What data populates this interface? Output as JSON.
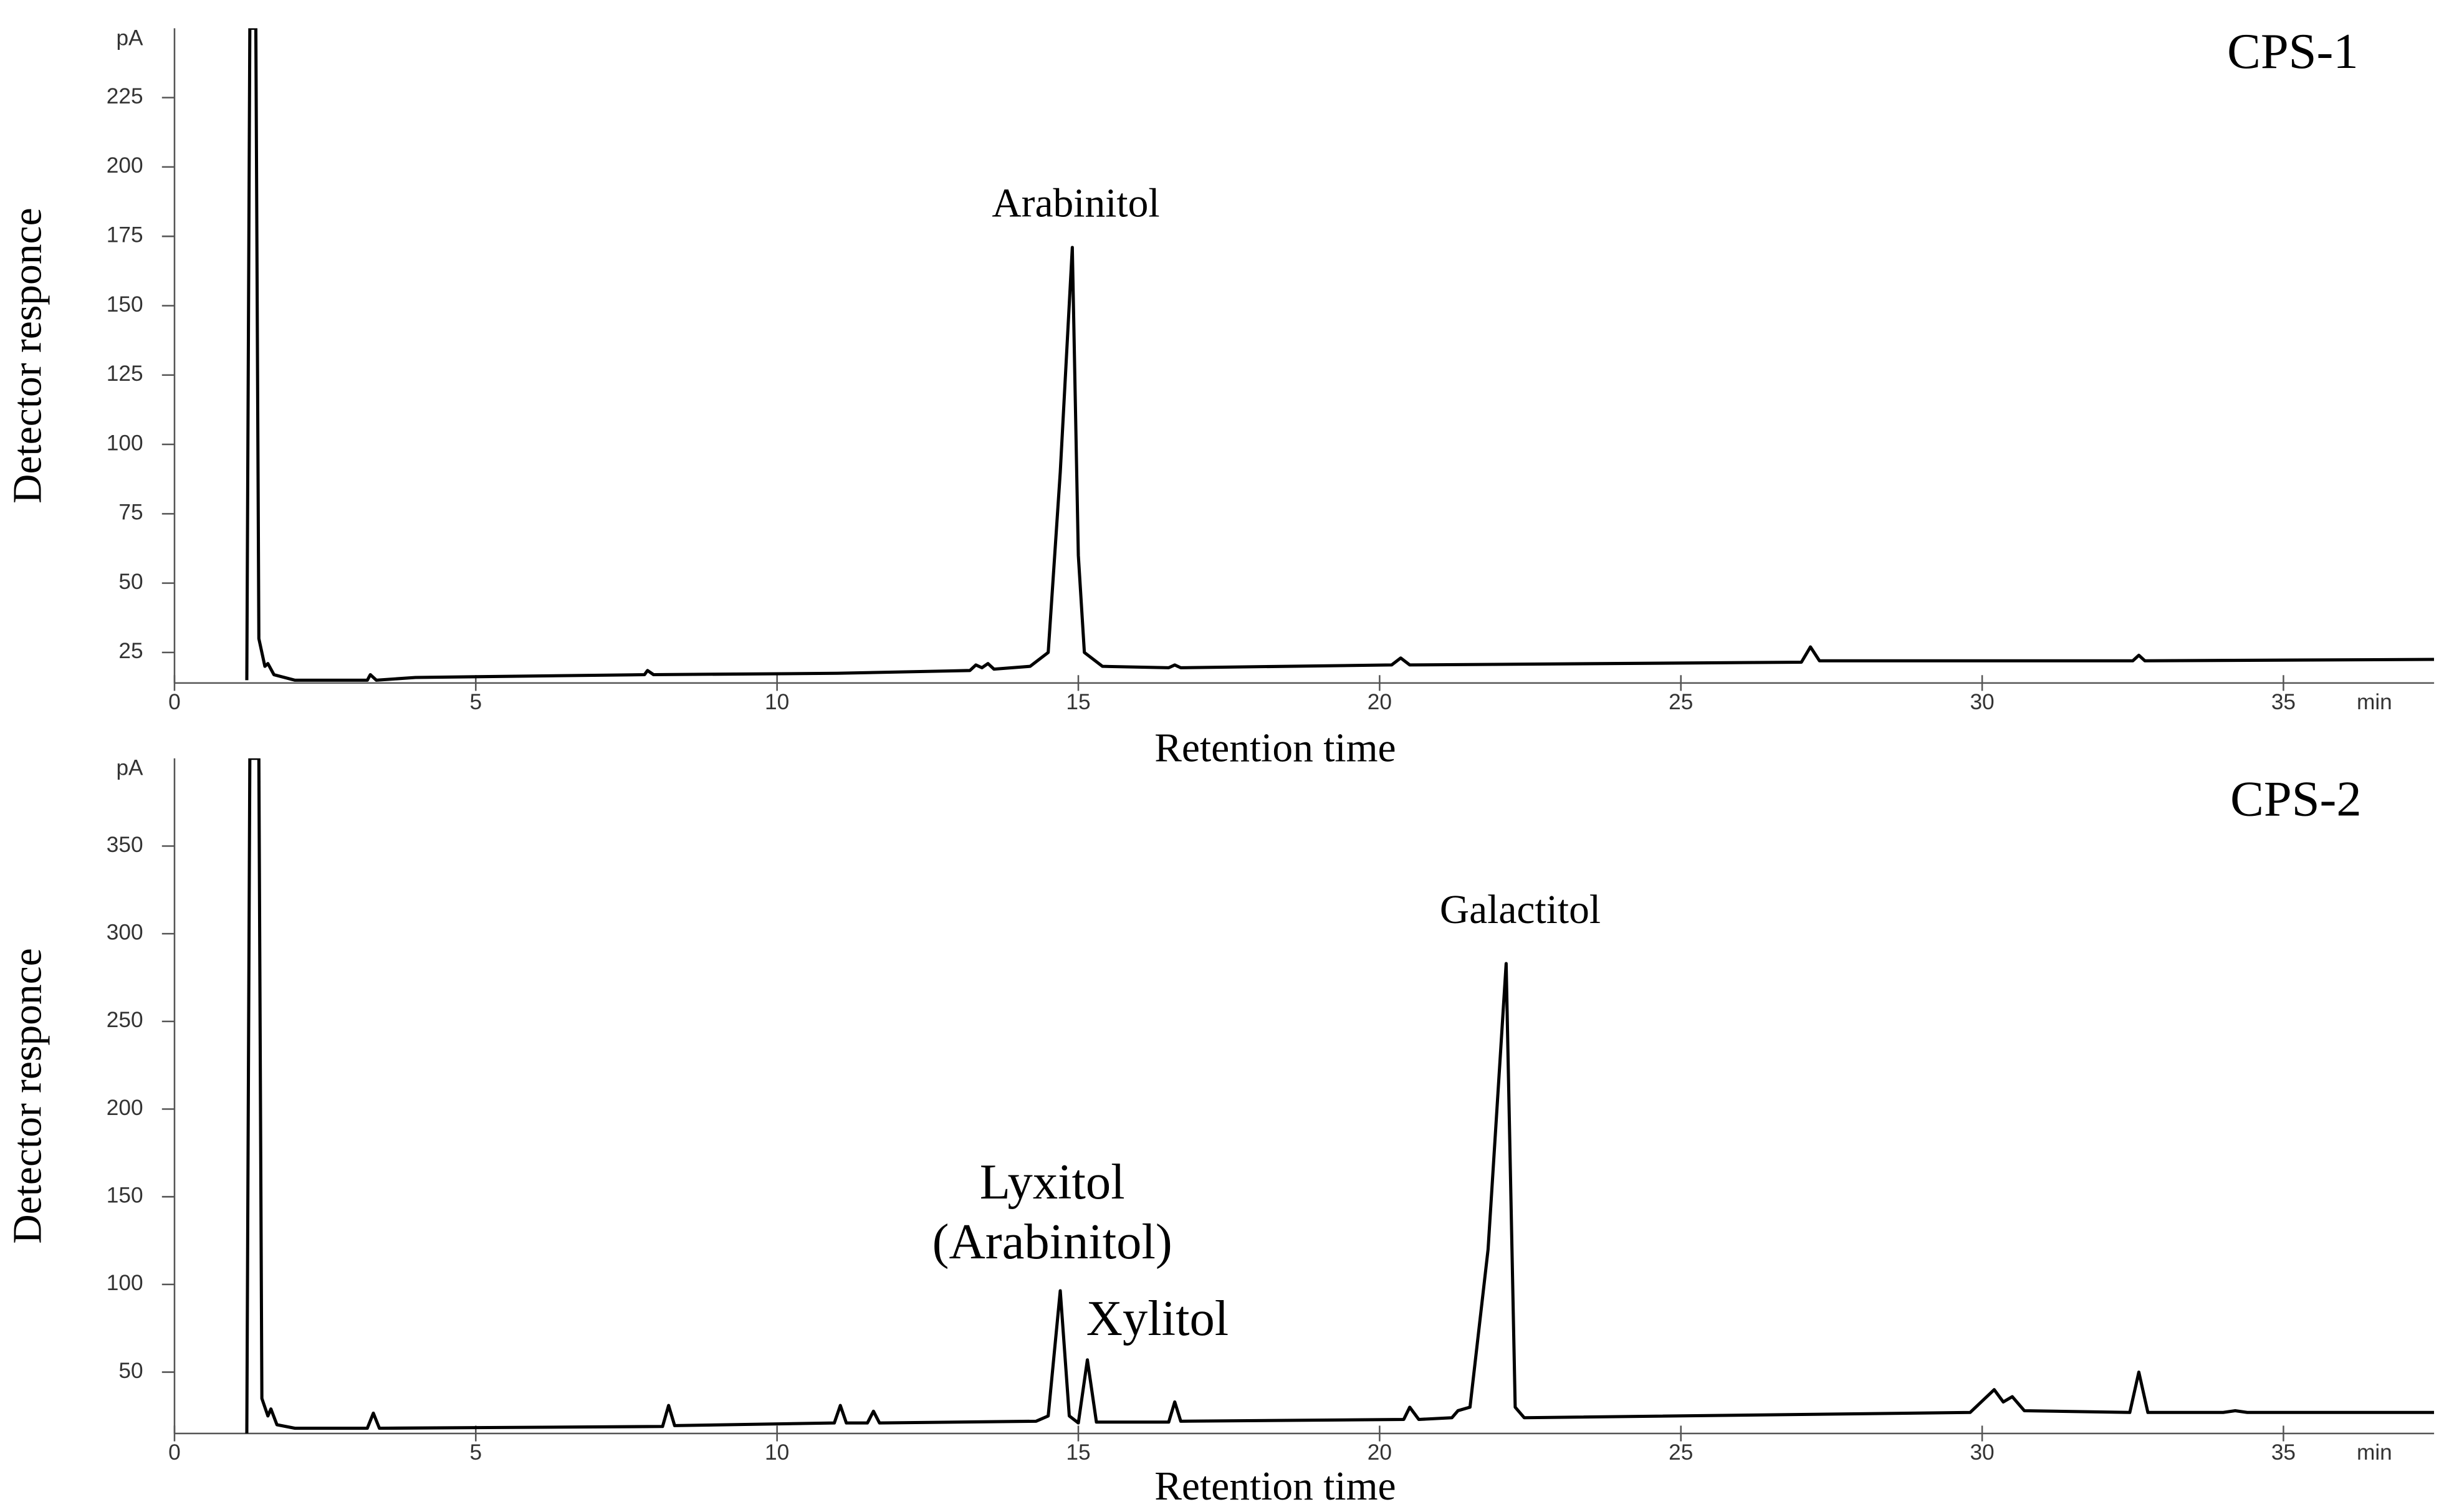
{
  "chart_data": [
    {
      "type": "line",
      "label": "CPS-1",
      "ylabel": "Detector responce",
      "xlabel": "Retention time",
      "x_unit": "min",
      "y_unit": "pA",
      "annotations": [
        "Arabinitol"
      ],
      "color": "#000000",
      "xlim": [
        0,
        37.5
      ],
      "xticks": [
        0,
        5,
        10,
        15,
        20,
        25,
        30,
        35
      ],
      "ylim": [
        14,
        250
      ],
      "yticks": [
        25,
        50,
        75,
        100,
        125,
        150,
        175,
        200,
        225
      ],
      "x": [
        1.2,
        1.25,
        1.35,
        1.4,
        1.5,
        1.55,
        1.65,
        2.0,
        3.2,
        3.25,
        3.35,
        4,
        7.8,
        7.85,
        7.95,
        11,
        13.2,
        13.3,
        13.4,
        13.5,
        13.6,
        14.2,
        14.5,
        14.7,
        14.9,
        15.0,
        15.1,
        15.4,
        16.5,
        16.6,
        16.7,
        20.2,
        20.35,
        20.5,
        27.0,
        27.15,
        27.3,
        32.5,
        32.6,
        32.7,
        37.5
      ],
      "values": [
        15,
        250,
        250,
        30,
        20,
        21,
        17,
        15,
        15,
        17,
        15,
        16,
        17,
        18.5,
        17,
        17.5,
        18.5,
        20.5,
        19.5,
        21,
        19,
        20,
        25,
        90,
        171,
        60,
        25,
        20,
        19.5,
        20.5,
        19.5,
        20.5,
        23,
        20.5,
        21.5,
        27,
        22,
        22,
        24,
        22,
        22.5
      ]
    },
    {
      "type": "line",
      "label": "CPS-2",
      "ylabel": "Detector responce",
      "xlabel": "Retention time",
      "x_unit": "min",
      "y_unit": "pA",
      "annotations": [
        "Lyxitol",
        "(Arabinitol)",
        "Xylitol",
        "Galactitol"
      ],
      "color": "#000000",
      "xlim": [
        0,
        37.5
      ],
      "xticks": [
        0,
        5,
        10,
        15,
        20,
        25,
        30,
        35
      ],
      "ylim": [
        15,
        400
      ],
      "yticks": [
        50,
        100,
        150,
        200,
        250,
        300,
        350
      ],
      "x": [
        1.2,
        1.25,
        1.4,
        1.45,
        1.55,
        1.6,
        1.7,
        2.0,
        3.2,
        3.3,
        3.4,
        8.1,
        8.2,
        8.3,
        10.95,
        11.05,
        11.15,
        11.5,
        11.6,
        11.7,
        14.3,
        14.5,
        14.7,
        14.85,
        15.0,
        15.15,
        15.3,
        16.5,
        16.6,
        16.7,
        20.4,
        20.5,
        20.65,
        21.2,
        21.3,
        21.5,
        21.8,
        22.1,
        22.25,
        22.4,
        29.8,
        30.2,
        30.35,
        30.5,
        30.7,
        32.45,
        32.6,
        32.75,
        34.0,
        34.2,
        34.4,
        37.5
      ],
      "values": [
        15,
        400,
        400,
        35,
        25,
        29,
        20,
        18,
        18,
        26.6,
        18,
        19,
        31,
        19.5,
        21,
        31,
        21,
        21,
        27.7,
        21,
        22,
        25,
        96.4,
        25,
        21,
        57,
        21.5,
        21.5,
        33,
        22,
        23,
        30,
        23,
        24,
        28,
        30,
        120,
        283,
        30,
        24,
        27,
        40,
        33,
        36,
        28,
        27,
        50,
        27,
        27,
        28,
        27,
        27
      ]
    }
  ]
}
